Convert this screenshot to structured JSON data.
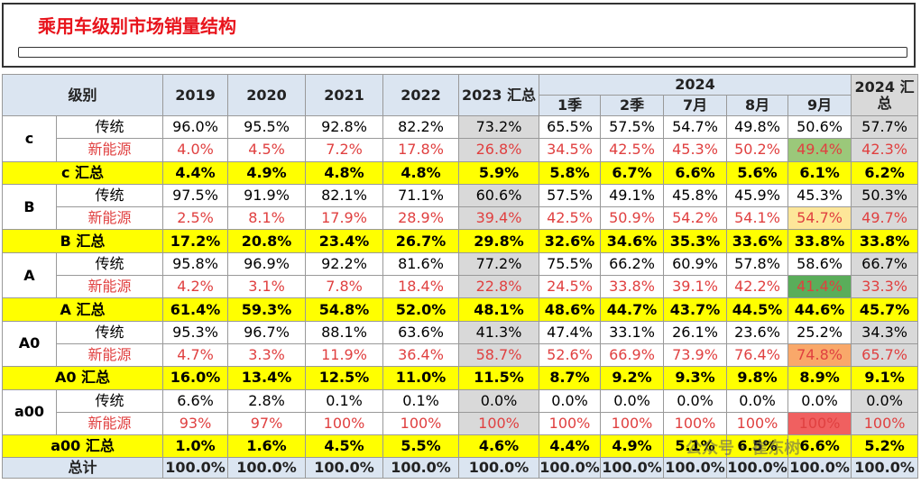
{
  "header": {
    "title": "乘用车级别市场销量结构"
  },
  "table": {
    "header_top": {
      "level": "级别",
      "years": [
        "2019",
        "2020",
        "2021",
        "2022",
        "2023 汇总"
      ],
      "group_2024": "2024",
      "total_2024": "2024 汇总"
    },
    "header_sub": [
      "1季",
      "2季",
      "7月",
      "8月",
      "9月"
    ],
    "groups": [
      {
        "name": "c",
        "nev_highlight": "#9bc87a",
        "traditional": {
          "label": "传统",
          "cells": [
            "96.0%",
            "95.5%",
            "92.8%",
            "82.2%",
            "73.2%",
            "65.5%",
            "57.5%",
            "54.7%",
            "49.8%",
            "50.6%",
            "57.7%"
          ]
        },
        "nev": {
          "label": "新能源",
          "cells": [
            "4.0%",
            "4.5%",
            "7.2%",
            "17.8%",
            "26.8%",
            "34.5%",
            "42.5%",
            "45.3%",
            "50.2%",
            "49.4%",
            "42.3%"
          ]
        },
        "total": {
          "label": "c 汇总",
          "cells": [
            "4.4%",
            "4.9%",
            "4.8%",
            "4.8%",
            "5.9%",
            "5.8%",
            "6.7%",
            "6.6%",
            "5.6%",
            "6.1%",
            "6.2%"
          ]
        }
      },
      {
        "name": "B",
        "nev_highlight": "#fde699",
        "traditional": {
          "label": "传统",
          "cells": [
            "97.5%",
            "91.9%",
            "82.1%",
            "71.1%",
            "60.6%",
            "57.5%",
            "49.1%",
            "45.8%",
            "45.9%",
            "45.3%",
            "50.3%"
          ]
        },
        "nev": {
          "label": "新能源",
          "cells": [
            "2.5%",
            "8.1%",
            "17.9%",
            "28.9%",
            "39.4%",
            "42.5%",
            "50.9%",
            "54.2%",
            "54.1%",
            "54.7%",
            "49.7%"
          ]
        },
        "total": {
          "label": "B 汇总",
          "cells": [
            "17.2%",
            "20.8%",
            "23.4%",
            "26.7%",
            "29.8%",
            "32.6%",
            "34.6%",
            "35.3%",
            "33.6%",
            "33.8%",
            "33.8%"
          ]
        }
      },
      {
        "name": "A",
        "nev_highlight": "#5aad5a",
        "traditional": {
          "label": "传统",
          "cells": [
            "95.8%",
            "96.9%",
            "92.2%",
            "81.6%",
            "77.2%",
            "75.5%",
            "66.2%",
            "60.9%",
            "57.8%",
            "58.6%",
            "66.7%"
          ]
        },
        "nev": {
          "label": "新能源",
          "cells": [
            "4.2%",
            "3.1%",
            "7.8%",
            "18.4%",
            "22.8%",
            "24.5%",
            "33.8%",
            "39.1%",
            "42.2%",
            "41.4%",
            "33.3%"
          ]
        },
        "total": {
          "label": "A 汇总",
          "cells": [
            "61.4%",
            "59.3%",
            "54.8%",
            "52.0%",
            "48.1%",
            "48.6%",
            "44.7%",
            "43.7%",
            "44.5%",
            "44.6%",
            "45.7%"
          ]
        }
      },
      {
        "name": "A0",
        "nev_highlight": "#f9a86a",
        "traditional": {
          "label": "传统",
          "cells": [
            "95.3%",
            "96.7%",
            "88.1%",
            "63.6%",
            "41.3%",
            "47.4%",
            "33.1%",
            "26.1%",
            "23.6%",
            "25.2%",
            "34.3%"
          ]
        },
        "nev": {
          "label": "新能源",
          "cells": [
            "4.7%",
            "3.3%",
            "11.9%",
            "36.4%",
            "58.7%",
            "52.6%",
            "66.9%",
            "73.9%",
            "76.4%",
            "74.8%",
            "65.7%"
          ]
        },
        "total": {
          "label": "A0 汇总",
          "cells": [
            "16.0%",
            "13.4%",
            "12.5%",
            "11.0%",
            "11.5%",
            "8.7%",
            "9.2%",
            "9.3%",
            "9.8%",
            "8.9%",
            "9.1%"
          ]
        }
      },
      {
        "name": "a00",
        "nev_highlight": "#f06060",
        "traditional": {
          "label": "传统",
          "cells": [
            "6.6%",
            "2.8%",
            "0.1%",
            "0.1%",
            "0.0%",
            "0.0%",
            "0.0%",
            "0.0%",
            "0.0%",
            "0.0%",
            "0.0%"
          ]
        },
        "nev": {
          "label": "新能源",
          "cells": [
            "93%",
            "97%",
            "100%",
            "100%",
            "100%",
            "100%",
            "100%",
            "100%",
            "100%",
            "100%",
            "100%"
          ]
        },
        "total": {
          "label": "a00 汇总",
          "cells": [
            "1.0%",
            "1.6%",
            "4.5%",
            "5.5%",
            "4.6%",
            "4.4%",
            "4.9%",
            "5.1%",
            "6.5%",
            "6.6%",
            "5.2%"
          ]
        }
      }
    ],
    "grand_total": {
      "label": "总计",
      "cells": [
        "100.0%",
        "100.0%",
        "100.0%",
        "100.0%",
        "100.0%",
        "100.0%",
        "100.0%",
        "100.0%",
        "100.0%",
        "100.0%",
        "100.0%"
      ]
    }
  },
  "watermark": "公众号 · 崔东树"
}
